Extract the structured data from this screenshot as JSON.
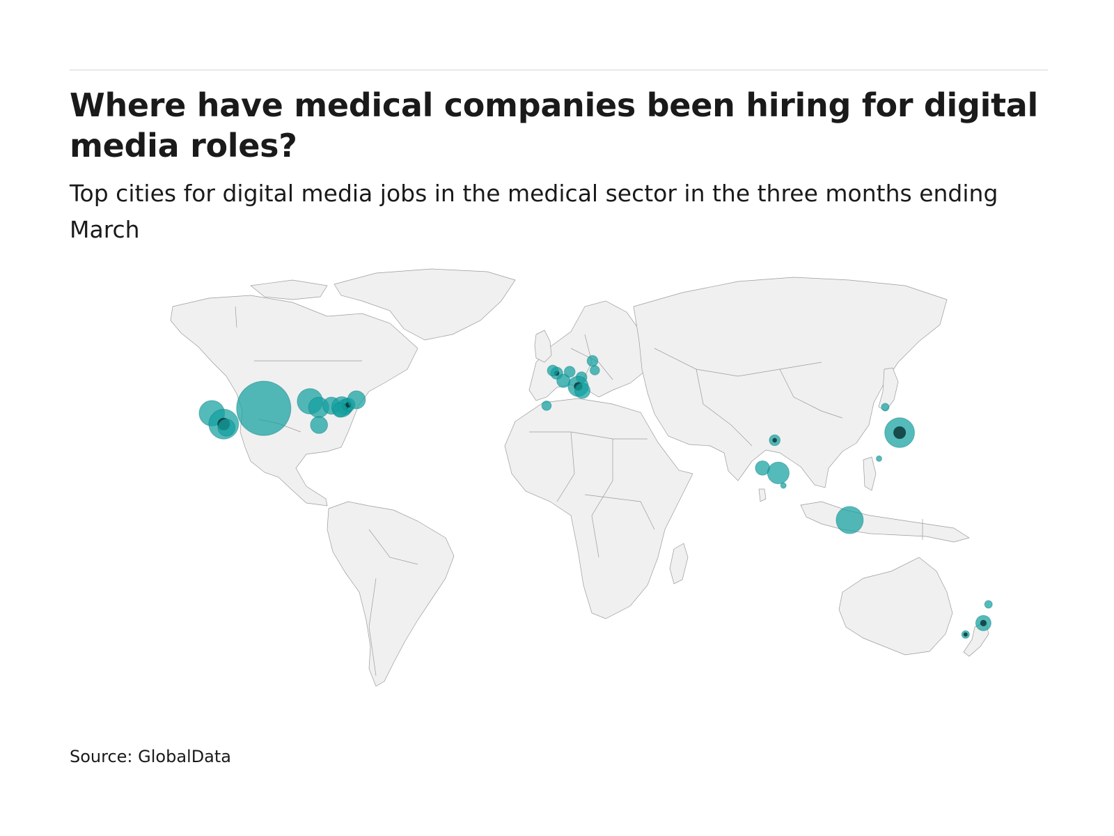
{
  "header": {
    "title": "Where have medical companies been hiring for digital media roles?",
    "subtitle": "Top cities for digital media jobs in the medical sector in the three months ending March"
  },
  "footer": {
    "source": "Source: GlobalData"
  },
  "colors": {
    "bubble": "#14a0a0",
    "bubble_dense": "#062b2c",
    "land": "#f0f0f0",
    "border": "#9a9a9a"
  },
  "chart_data": {
    "type": "bubble-map",
    "title": "Where have medical companies been hiring for digital media roles?",
    "subtitle": "Top cities for digital media jobs in the medical sector in the three months ending March",
    "source": "Source: GlobalData",
    "legend": "none",
    "points": [
      {
        "lon": -104.0,
        "lat": 39.5,
        "size": 100
      },
      {
        "lon": -122.4,
        "lat": 37.8,
        "size": 22
      },
      {
        "lon": -118.2,
        "lat": 34.1,
        "size": 30,
        "dense": true
      },
      {
        "lon": -117.2,
        "lat": 32.9,
        "size": 10
      },
      {
        "lon": -87.6,
        "lat": 41.9,
        "size": 22
      },
      {
        "lon": -84.5,
        "lat": 39.8,
        "size": 14
      },
      {
        "lon": -84.4,
        "lat": 33.8,
        "size": 10
      },
      {
        "lon": -80.0,
        "lat": 40.4,
        "size": 10
      },
      {
        "lon": -76.3,
        "lat": 40.0,
        "size": 14
      },
      {
        "lon": -75.1,
        "lat": 40.0,
        "size": 8,
        "dense": true
      },
      {
        "lon": -74.0,
        "lat": 40.7,
        "size": 6,
        "dense": true
      },
      {
        "lon": -77.0,
        "lat": 38.9,
        "size": 7
      },
      {
        "lon": -71.1,
        "lat": 42.4,
        "size": 11
      },
      {
        "lon": -0.1,
        "lat": 51.5,
        "size": 5,
        "dense": true
      },
      {
        "lon": -1.5,
        "lat": 52.4,
        "size": 4
      },
      {
        "lon": 2.3,
        "lat": 48.9,
        "size": 6
      },
      {
        "lon": 4.5,
        "lat": 52.0,
        "size": 4
      },
      {
        "lon": 8.7,
        "lat": 50.1,
        "size": 4
      },
      {
        "lon": 12.6,
        "lat": 55.7,
        "size": 4
      },
      {
        "lon": 7.5,
        "lat": 47.0,
        "size": 14,
        "dense": true
      },
      {
        "lon": 9.0,
        "lat": 45.5,
        "size": 8
      },
      {
        "lon": -3.7,
        "lat": 40.4,
        "size": 3
      },
      {
        "lon": 13.4,
        "lat": 52.5,
        "size": 3
      },
      {
        "lon": 77.2,
        "lat": 28.6,
        "size": 4,
        "dense": true
      },
      {
        "lon": 72.9,
        "lat": 19.1,
        "size": 7
      },
      {
        "lon": 78.5,
        "lat": 17.4,
        "size": 16
      },
      {
        "lon": 80.3,
        "lat": 13.1,
        "size": 1
      },
      {
        "lon": 103.8,
        "lat": 1.3,
        "size": 25
      },
      {
        "lon": 116.4,
        "lat": 39.9,
        "size": 2
      },
      {
        "lon": 121.5,
        "lat": 31.2,
        "size": 30,
        "dense": true
      },
      {
        "lon": 114.2,
        "lat": 22.3,
        "size": 1
      },
      {
        "lon": 151.2,
        "lat": -33.9,
        "size": 8,
        "dense": true
      },
      {
        "lon": 144.9,
        "lat": -37.8,
        "size": 2,
        "dense": true
      },
      {
        "lon": 153.0,
        "lat": -27.5,
        "size": 2
      }
    ]
  }
}
